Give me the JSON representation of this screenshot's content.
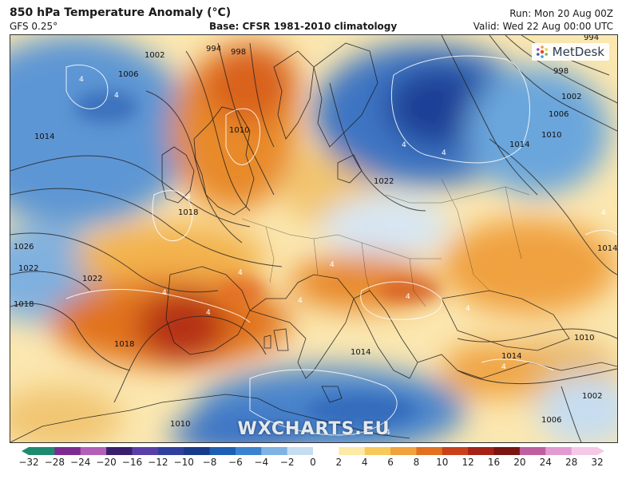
{
  "header": {
    "title": "850 hPa Temperature Anomaly (°C)",
    "model": "GFS 0.25°",
    "base": "Base: CFSR 1981-2010 climatology",
    "run": "Run: Mon 20 Aug 00Z",
    "valid": "Valid: Wed 22 Aug 00:00 UTC"
  },
  "map": {
    "logo": "MetDesk",
    "watermark": "WXCHARTS.EU",
    "isobar_labels": [
      "1002",
      "1006",
      "1014",
      "1026",
      "1022",
      "1018",
      "994",
      "998",
      "1010",
      "1018",
      "1022",
      "1022",
      "1018",
      "1010",
      "1014",
      "1006",
      "1002",
      "998",
      "994",
      "1014",
      "1010",
      "1014",
      "1002",
      "1006",
      "1010",
      "1014"
    ],
    "contour_labels": [
      "4",
      "4",
      "4",
      "4",
      "4",
      "4",
      "4",
      "4",
      "4",
      "4",
      "4",
      "4",
      "4",
      "4",
      "4"
    ]
  },
  "colorbar": {
    "labels": [
      "−32",
      "−28",
      "−24",
      "−20",
      "−16",
      "−12",
      "−10",
      "−8",
      "−6",
      "−4",
      "−2",
      "0",
      "2",
      "4",
      "6",
      "8",
      "10",
      "12",
      "16",
      "20",
      "24",
      "28",
      "32"
    ],
    "colors": [
      "#1f8a70",
      "#7d2b8e",
      "#b35fb8",
      "#3a1f6e",
      "#5a3ea8",
      "#2f3f9e",
      "#173a8c",
      "#1e5fb5",
      "#3b83d0",
      "#7eb3e3",
      "#c6ddf0",
      "#ffffff",
      "#fde9a8",
      "#f6c95a",
      "#f0a23c",
      "#e2701f",
      "#c9401a",
      "#a62217",
      "#7a1512",
      "#c05fa0",
      "#e39ad0",
      "#f5c8e6"
    ]
  }
}
